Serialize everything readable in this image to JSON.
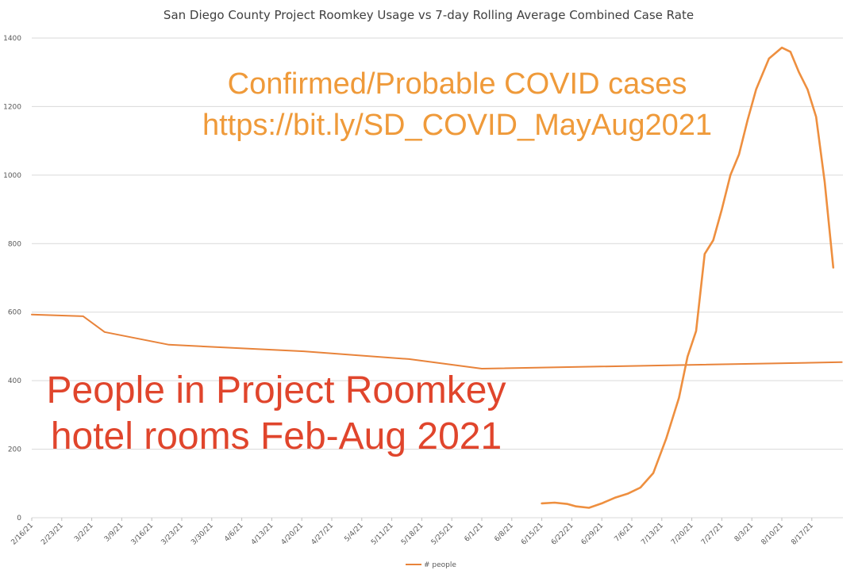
{
  "chart_data": {
    "type": "line",
    "title": "San Diego County Project Roomkey Usage vs 7-day Rolling Average Combined Case Rate",
    "xlabel": "",
    "ylabel": "",
    "ylim": [
      0,
      1400
    ],
    "yticks": [
      0,
      200,
      400,
      600,
      800,
      1000,
      1200,
      1400
    ],
    "grid": true,
    "x_tick_labels": [
      "2/16/21",
      "2/23/21",
      "3/2/21",
      "3/9/21",
      "3/16/21",
      "3/23/21",
      "3/30/21",
      "4/6/21",
      "4/13/21",
      "4/20/21",
      "4/27/21",
      "5/4/21",
      "5/11/21",
      "5/18/21",
      "5/25/21",
      "6/1/21",
      "6/8/21",
      "6/15/21",
      "6/22/21",
      "6/29/21",
      "7/6/21",
      "7/13/21",
      "7/20/21",
      "7/27/21",
      "8/3/21",
      "8/10/21",
      "8/17/21"
    ],
    "legend": {
      "position": "bottom",
      "entries": [
        "# people"
      ]
    },
    "series": [
      {
        "name": "# people",
        "color": "#e8833a",
        "points": [
          [
            "2/16/21",
            593
          ],
          [
            "2/28/21",
            588
          ],
          [
            "3/5/21",
            542
          ],
          [
            "3/20/21",
            505
          ],
          [
            "4/20/21",
            486
          ],
          [
            "5/15/21",
            463
          ],
          [
            "6/1/21",
            435
          ],
          [
            "8/24/21",
            454
          ]
        ]
      },
      {
        "color": "#ee8f3f",
        "points": [
          [
            "6/15/21",
            42
          ],
          [
            "6/18/21",
            44
          ],
          [
            "6/21/21",
            40
          ],
          [
            "6/23/21",
            33
          ],
          [
            "6/26/21",
            29
          ],
          [
            "6/29/21",
            42
          ],
          [
            "7/2/21",
            58
          ],
          [
            "7/5/21",
            70
          ],
          [
            "7/8/21",
            88
          ],
          [
            "7/11/21",
            130
          ],
          [
            "7/14/21",
            230
          ],
          [
            "7/17/21",
            350
          ],
          [
            "7/19/21",
            470
          ],
          [
            "7/21/21",
            545
          ],
          [
            "7/23/21",
            770
          ],
          [
            "7/25/21",
            810
          ],
          [
            "7/27/21",
            900
          ],
          [
            "7/29/21",
            1000
          ],
          [
            "7/31/21",
            1060
          ],
          [
            "8/2/21",
            1160
          ],
          [
            "8/4/21",
            1250
          ],
          [
            "8/7/21",
            1340
          ],
          [
            "8/10/21",
            1372
          ],
          [
            "8/12/21",
            1360
          ],
          [
            "8/14/21",
            1300
          ],
          [
            "8/16/21",
            1250
          ],
          [
            "8/18/21",
            1170
          ],
          [
            "8/20/21",
            980
          ],
          [
            "8/22/21",
            730
          ]
        ]
      }
    ],
    "annotations": [
      {
        "line1": "Confirmed/Probable COVID cases",
        "line2": "https://bit.ly/SD_COVID_MayAug2021",
        "color": "#ef9a3a"
      },
      {
        "line1": "People in Project Roomkey",
        "line2": "hotel rooms Feb-Aug 2021",
        "color": "#e0452c"
      }
    ]
  }
}
